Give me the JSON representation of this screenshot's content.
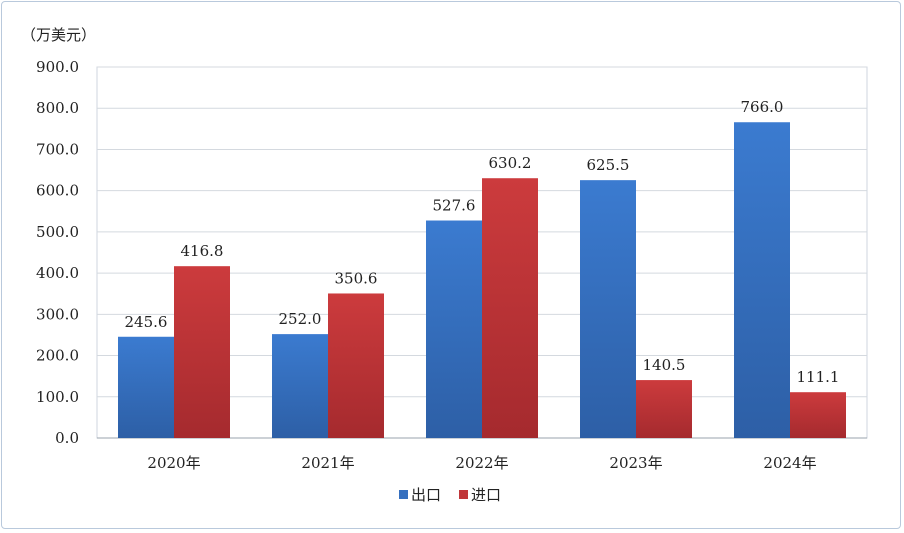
{
  "chart_data": {
    "type": "bar",
    "unit_label": "（万美元）",
    "categories": [
      "2020年",
      "2021年",
      "2022年",
      "2023年",
      "2024年"
    ],
    "series": [
      {
        "name": "出口",
        "values": [
          245.6,
          252.0,
          527.6,
          625.5,
          766.0
        ]
      },
      {
        "name": "进口",
        "values": [
          416.8,
          350.6,
          630.2,
          140.5,
          111.1
        ]
      }
    ],
    "value_labels": [
      [
        "245.6",
        "252.0",
        "527.6",
        "625.5",
        "766.0"
      ],
      [
        "416.8",
        "350.6",
        "630.2",
        "140.5",
        "111.1"
      ]
    ],
    "yticks": [
      "0.0",
      "100.0",
      "200.0",
      "300.0",
      "400.0",
      "500.0",
      "600.0",
      "700.0",
      "800.0",
      "900.0"
    ],
    "ylim": [
      0,
      900
    ],
    "grid": true,
    "legend_position": "bottom",
    "colors": {
      "出口": "#3670bf",
      "进口": "#c0373a"
    }
  }
}
